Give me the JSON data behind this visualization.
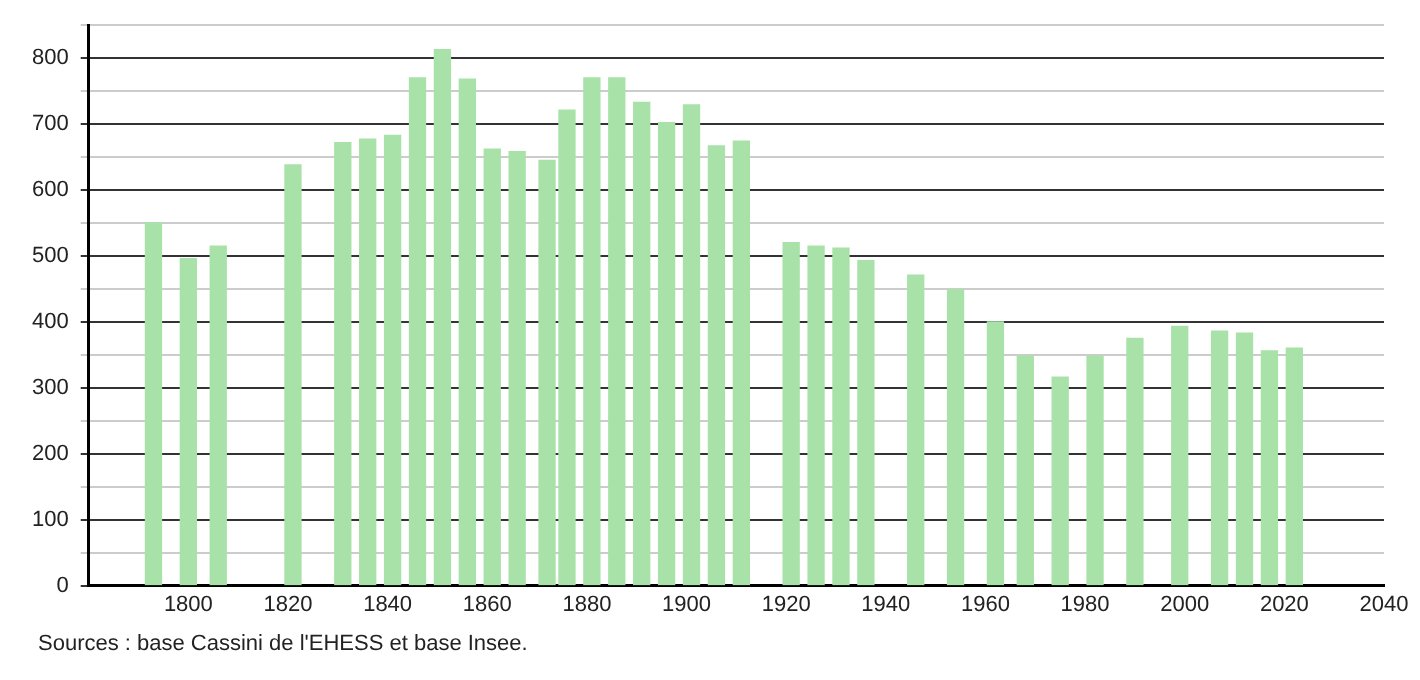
{
  "chart_data": {
    "type": "bar",
    "x": [
      1793,
      1800,
      1806,
      1821,
      1831,
      1836,
      1841,
      1846,
      1851,
      1856,
      1861,
      1866,
      1872,
      1876,
      1881,
      1886,
      1891,
      1896,
      1901,
      1906,
      1911,
      1921,
      1926,
      1931,
      1936,
      1946,
      1954,
      1962,
      1968,
      1975,
      1982,
      1990,
      1999,
      2007,
      2012,
      2017,
      2022
    ],
    "values": [
      550,
      496,
      515,
      638,
      672,
      677,
      683,
      770,
      813,
      768,
      662,
      658,
      645,
      721,
      770,
      770,
      733,
      702,
      729,
      667,
      674,
      520,
      515,
      512,
      493,
      471,
      449,
      400,
      348,
      316,
      348,
      375,
      393,
      386,
      383,
      356,
      360
    ],
    "color": "#a8e2a8",
    "xlim": [
      1780,
      2040
    ],
    "xticks": [
      1800,
      1820,
      1840,
      1860,
      1880,
      1900,
      1920,
      1940,
      1960,
      1980,
      2000,
      2020,
      2040
    ],
    "ylim": [
      0,
      850
    ],
    "yticks": [
      0,
      {
        "value": 50,
        "label": null
      },
      100,
      {
        "value": 150,
        "label": null
      },
      200,
      {
        "value": 250,
        "label": null
      },
      300,
      {
        "value": 350,
        "label": null
      },
      400,
      {
        "value": 450,
        "label": null
      },
      500,
      {
        "value": 550,
        "label": null
      },
      600,
      {
        "value": 650,
        "label": null
      },
      700,
      {
        "value": 750,
        "label": null
      },
      800,
      {
        "value": 850,
        "label": null
      }
    ],
    "grid": "y",
    "legend": false,
    "annotations": [
      "Sources : base Cassini de l'EHESS et base Insee."
    ]
  }
}
